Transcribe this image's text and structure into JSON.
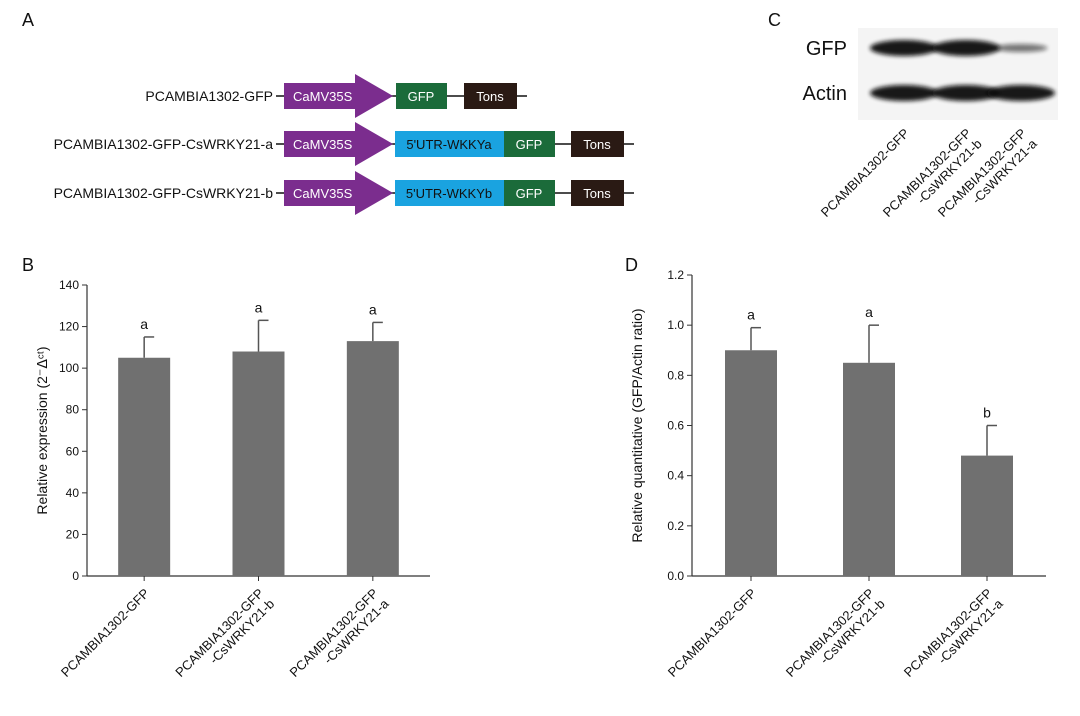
{
  "panels": {
    "a": "A",
    "b": "B",
    "c": "C",
    "d": "D"
  },
  "constructs": [
    {
      "name": "PCAMBIA1302-GFP",
      "promoter": "CaMV35S",
      "utr": null,
      "gfp": "GFP",
      "terminator": "Tons"
    },
    {
      "name": "PCAMBIA1302-GFP-CsWRKY21-a",
      "promoter": "CaMV35S",
      "utr": "5'UTR-WKKYa",
      "gfp": "GFP",
      "terminator": "Tons"
    },
    {
      "name": "PCAMBIA1302-GFP-CsWRKY21-b",
      "promoter": "CaMV35S",
      "utr": "5'UTR-WKKYb",
      "gfp": "GFP",
      "terminator": "Tons"
    }
  ],
  "colors": {
    "promoter": "#7b2d8e",
    "utr": "#1aa3e0",
    "gfp": "#1b6b3a",
    "terminator": "#2a1a14",
    "bar": "#707070"
  },
  "western": {
    "rows": [
      "GFP",
      "Actin"
    ],
    "lanes": [
      "PCAMBIA1302-GFP",
      "PCAMBIA1302-GFP\n-CsWRKY21-b",
      "PCAMBIA1302-GFP\n-CsWRKY21-a"
    ],
    "intensity": {
      "GFP": [
        1.0,
        1.0,
        0.45
      ],
      "Actin": [
        1.0,
        1.0,
        1.0
      ]
    }
  },
  "chart_data": [
    {
      "type": "bar",
      "categories": [
        "PCAMBIA1302-GFP",
        "PCAMBIA1302-GFP\n-CsWRKY21-b",
        "PCAMBIA1302-GFP\n-CsWRKY21-a"
      ],
      "values": [
        105,
        108,
        113
      ],
      "errors": [
        10,
        15,
        9
      ],
      "sig_letters": [
        "a",
        "a",
        "a"
      ],
      "ylabel": "Relative expression (2⁻ᐃᶜᵗ)",
      "ylim": [
        0,
        140
      ],
      "yticks": [
        0,
        20,
        40,
        60,
        80,
        100,
        120,
        140
      ]
    },
    {
      "type": "bar",
      "categories": [
        "PCAMBIA1302-GFP",
        "PCAMBIA1302-GFP\n-CsWRKY21-b",
        "PCAMBIA1302-GFP\n-CsWRKY21-a"
      ],
      "values": [
        0.9,
        0.85,
        0.48
      ],
      "errors": [
        0.09,
        0.15,
        0.12
      ],
      "sig_letters": [
        "a",
        "a",
        "b"
      ],
      "ylabel": "Relative quantitative (GFP/Actin ratio)",
      "ylim": [
        0,
        1.2
      ],
      "yticks": [
        0.0,
        0.2,
        0.4,
        0.6,
        0.8,
        1.0,
        1.2
      ]
    }
  ]
}
